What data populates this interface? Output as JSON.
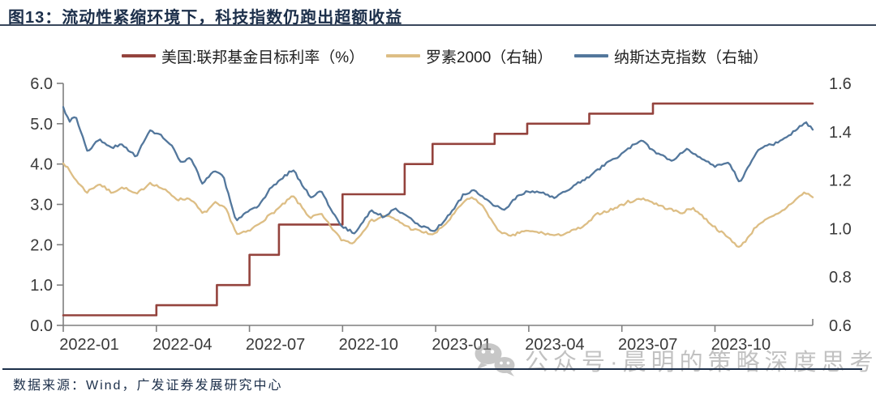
{
  "figure": {
    "title_prefix": "图13：",
    "title": "流动性紧缩环境下，科技指数仍跑出超额收益",
    "source": "数据来源：Wind，广发证券发展研究中心",
    "watermark": "公众号·晨明的策略深度思考"
  },
  "legend": [
    {
      "label": "美国:联邦基金目标利率（%）",
      "color": "#94433d"
    },
    {
      "label": "罗素2000（右轴）",
      "color": "#ddbe85"
    },
    {
      "label": "纳斯达克指数（右轴）",
      "color": "#53779c"
    }
  ],
  "chart_data": {
    "type": "line",
    "title": "流动性紧缩环境下，科技指数仍跑出超额收益",
    "x_axis": {
      "unit": "months since 2022-01",
      "tick_labels": [
        "2022-01",
        "2022-04",
        "2022-07",
        "2022-10",
        "2023-01",
        "2023-04",
        "2023-07",
        "2023-10"
      ],
      "tick_months": [
        0,
        3,
        6,
        9,
        12,
        15,
        18,
        21
      ],
      "range_months": [
        0,
        24.15
      ]
    },
    "y_left": {
      "ticks": [
        "6.0",
        "5.0",
        "4.0",
        "3.0",
        "2.0",
        "1.0",
        "0.0"
      ],
      "tick_values": [
        6,
        5,
        4,
        3,
        2,
        1,
        0
      ],
      "range": [
        0,
        6
      ]
    },
    "y_right": {
      "ticks": [
        "1.6",
        "1.4",
        "1.2",
        "1.0",
        "0.8",
        "0.6"
      ],
      "tick_values": [
        1.6,
        1.4,
        1.2,
        1.0,
        0.8,
        0.6
      ],
      "range": [
        0.6,
        1.6
      ]
    },
    "grid": false,
    "legend_position": "top",
    "series": [
      {
        "name": "美国:联邦基金目标利率（%）",
        "axis": "left",
        "type": "step",
        "color": "#94433d",
        "width": 2.6,
        "points": [
          [
            0,
            0.25
          ],
          [
            3.0,
            0.5
          ],
          [
            4.95,
            1.0
          ],
          [
            6.0,
            1.75
          ],
          [
            6.95,
            2.5
          ],
          [
            9.0,
            3.25
          ],
          [
            11.0,
            4.0
          ],
          [
            11.9,
            4.5
          ],
          [
            13.9,
            4.75
          ],
          [
            14.95,
            5.0
          ],
          [
            16.95,
            5.25
          ],
          [
            19.0,
            5.5
          ],
          [
            24.15,
            5.5
          ]
        ]
      },
      {
        "name": "罗素2000（右轴）",
        "axis": "right",
        "type": "line",
        "color": "#ddbe85",
        "width": 2.3,
        "noise": 0.011,
        "seed": 7,
        "points": [
          [
            0,
            1.275
          ],
          [
            0.35,
            1.21
          ],
          [
            0.75,
            1.15
          ],
          [
            1.15,
            1.185
          ],
          [
            1.55,
            1.15
          ],
          [
            1.95,
            1.17
          ],
          [
            2.35,
            1.14
          ],
          [
            2.8,
            1.19
          ],
          [
            3.2,
            1.165
          ],
          [
            3.7,
            1.12
          ],
          [
            4.1,
            1.125
          ],
          [
            4.5,
            1.06
          ],
          [
            4.9,
            1.105
          ],
          [
            5.25,
            1.08
          ],
          [
            5.6,
            0.975
          ],
          [
            6.0,
            0.99
          ],
          [
            6.5,
            1.04
          ],
          [
            7.0,
            1.09
          ],
          [
            7.4,
            1.135
          ],
          [
            7.95,
            1.045
          ],
          [
            8.3,
            1.06
          ],
          [
            8.95,
            0.955
          ],
          [
            9.35,
            0.94
          ],
          [
            9.9,
            1.03
          ],
          [
            10.4,
            1.055
          ],
          [
            10.8,
            1.03
          ],
          [
            11.2,
            1.0
          ],
          [
            11.6,
            0.985
          ],
          [
            11.95,
            0.975
          ],
          [
            12.4,
            1.03
          ],
          [
            12.9,
            1.11
          ],
          [
            13.2,
            1.13
          ],
          [
            13.6,
            1.08
          ],
          [
            13.95,
            1.0
          ],
          [
            14.4,
            0.965
          ],
          [
            14.8,
            0.99
          ],
          [
            15.3,
            0.985
          ],
          [
            15.9,
            0.97
          ],
          [
            16.4,
            0.99
          ],
          [
            16.8,
            1.01
          ],
          [
            17.2,
            1.06
          ],
          [
            17.7,
            1.08
          ],
          [
            18.2,
            1.11
          ],
          [
            18.7,
            1.125
          ],
          [
            19.3,
            1.09
          ],
          [
            19.9,
            1.065
          ],
          [
            20.3,
            1.085
          ],
          [
            21.0,
            1.005
          ],
          [
            21.5,
            0.955
          ],
          [
            21.8,
            0.92
          ],
          [
            22.4,
            1.02
          ],
          [
            22.8,
            1.045
          ],
          [
            23.1,
            1.065
          ],
          [
            23.6,
            1.12
          ],
          [
            23.9,
            1.15
          ],
          [
            24.15,
            1.13
          ]
        ]
      },
      {
        "name": "纳斯达克指数（右轴）",
        "axis": "right",
        "type": "line",
        "color": "#53779c",
        "width": 2.3,
        "noise": 0.011,
        "seed": 3,
        "points": [
          [
            0,
            1.5
          ],
          [
            0.2,
            1.445
          ],
          [
            0.4,
            1.465
          ],
          [
            0.8,
            1.315
          ],
          [
            1.15,
            1.37
          ],
          [
            1.5,
            1.335
          ],
          [
            1.9,
            1.345
          ],
          [
            2.35,
            1.3
          ],
          [
            2.8,
            1.405
          ],
          [
            3.1,
            1.39
          ],
          [
            3.5,
            1.34
          ],
          [
            3.8,
            1.27
          ],
          [
            4.1,
            1.29
          ],
          [
            4.5,
            1.185
          ],
          [
            4.85,
            1.24
          ],
          [
            5.15,
            1.22
          ],
          [
            5.55,
            1.035
          ],
          [
            5.9,
            1.065
          ],
          [
            6.3,
            1.09
          ],
          [
            6.7,
            1.17
          ],
          [
            7.4,
            1.245
          ],
          [
            7.95,
            1.13
          ],
          [
            8.3,
            1.155
          ],
          [
            8.95,
            1.01
          ],
          [
            9.4,
            0.98
          ],
          [
            9.9,
            1.075
          ],
          [
            10.3,
            1.05
          ],
          [
            10.7,
            1.08
          ],
          [
            11.1,
            1.055
          ],
          [
            11.5,
            1.01
          ],
          [
            11.95,
            0.99
          ],
          [
            12.4,
            1.05
          ],
          [
            12.9,
            1.14
          ],
          [
            13.2,
            1.16
          ],
          [
            13.6,
            1.12
          ],
          [
            13.95,
            1.09
          ],
          [
            14.25,
            1.08
          ],
          [
            14.6,
            1.13
          ],
          [
            14.9,
            1.15
          ],
          [
            15.4,
            1.15
          ],
          [
            15.85,
            1.125
          ],
          [
            16.3,
            1.165
          ],
          [
            16.9,
            1.21
          ],
          [
            17.4,
            1.26
          ],
          [
            17.9,
            1.3
          ],
          [
            18.3,
            1.34
          ],
          [
            18.65,
            1.36
          ],
          [
            19.1,
            1.315
          ],
          [
            19.6,
            1.28
          ],
          [
            20.1,
            1.33
          ],
          [
            20.6,
            1.29
          ],
          [
            21.0,
            1.255
          ],
          [
            21.45,
            1.27
          ],
          [
            21.8,
            1.19
          ],
          [
            22.4,
            1.33
          ],
          [
            22.9,
            1.35
          ],
          [
            23.35,
            1.38
          ],
          [
            23.9,
            1.44
          ],
          [
            24.15,
            1.41
          ]
        ]
      }
    ]
  }
}
